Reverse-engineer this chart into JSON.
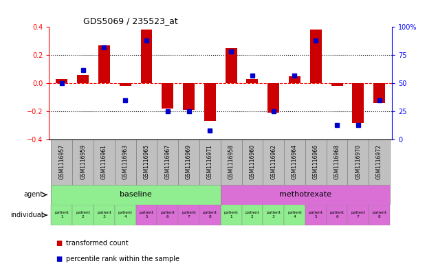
{
  "title": "GDS5069 / 235523_at",
  "samples": [
    "GSM1116957",
    "GSM1116959",
    "GSM1116961",
    "GSM1116963",
    "GSM1116965",
    "GSM1116967",
    "GSM1116969",
    "GSM1116971",
    "GSM1116958",
    "GSM1116960",
    "GSM1116962",
    "GSM1116964",
    "GSM1116966",
    "GSM1116968",
    "GSM1116970",
    "GSM1116972"
  ],
  "transformed_count": [
    0.03,
    0.06,
    0.27,
    -0.02,
    0.38,
    -0.18,
    -0.19,
    -0.27,
    0.25,
    0.03,
    -0.21,
    0.05,
    0.38,
    -0.02,
    -0.28,
    -0.14
  ],
  "percentile_rank": [
    50,
    62,
    82,
    35,
    88,
    25,
    25,
    8,
    78,
    57,
    25,
    57,
    88,
    13,
    13,
    35
  ],
  "agent_groups": [
    {
      "label": "baseline",
      "start": 0,
      "end": 8,
      "color": "#90EE90"
    },
    {
      "label": "methotrexate",
      "start": 8,
      "end": 16,
      "color": "#DA70D6"
    }
  ],
  "indiv_colors_baseline": [
    "#90EE90",
    "#90EE90",
    "#90EE90",
    "#90EE90",
    "#DA70D6",
    "#DA70D6",
    "#DA70D6",
    "#DA70D6"
  ],
  "indiv_colors_metho": [
    "#90EE90",
    "#90EE90",
    "#90EE90",
    "#90EE90",
    "#DA70D6",
    "#DA70D6",
    "#DA70D6",
    "#DA70D6"
  ],
  "bar_color": "#CC0000",
  "dot_color": "#0000CC",
  "gsm_bg_color": "#C0C0C0",
  "ylim": [
    -0.4,
    0.4
  ],
  "y2lim": [
    0,
    100
  ],
  "yticks": [
    -0.4,
    -0.2,
    0.0,
    0.2,
    0.4
  ],
  "y2ticks": [
    0,
    25,
    50,
    75,
    100
  ],
  "y2ticklabels": [
    "0",
    "25",
    "50",
    "75",
    "100%"
  ],
  "legend_items": [
    {
      "label": "transformed count",
      "color": "#CC0000"
    },
    {
      "label": "percentile rank within the sample",
      "color": "#0000CC"
    }
  ]
}
